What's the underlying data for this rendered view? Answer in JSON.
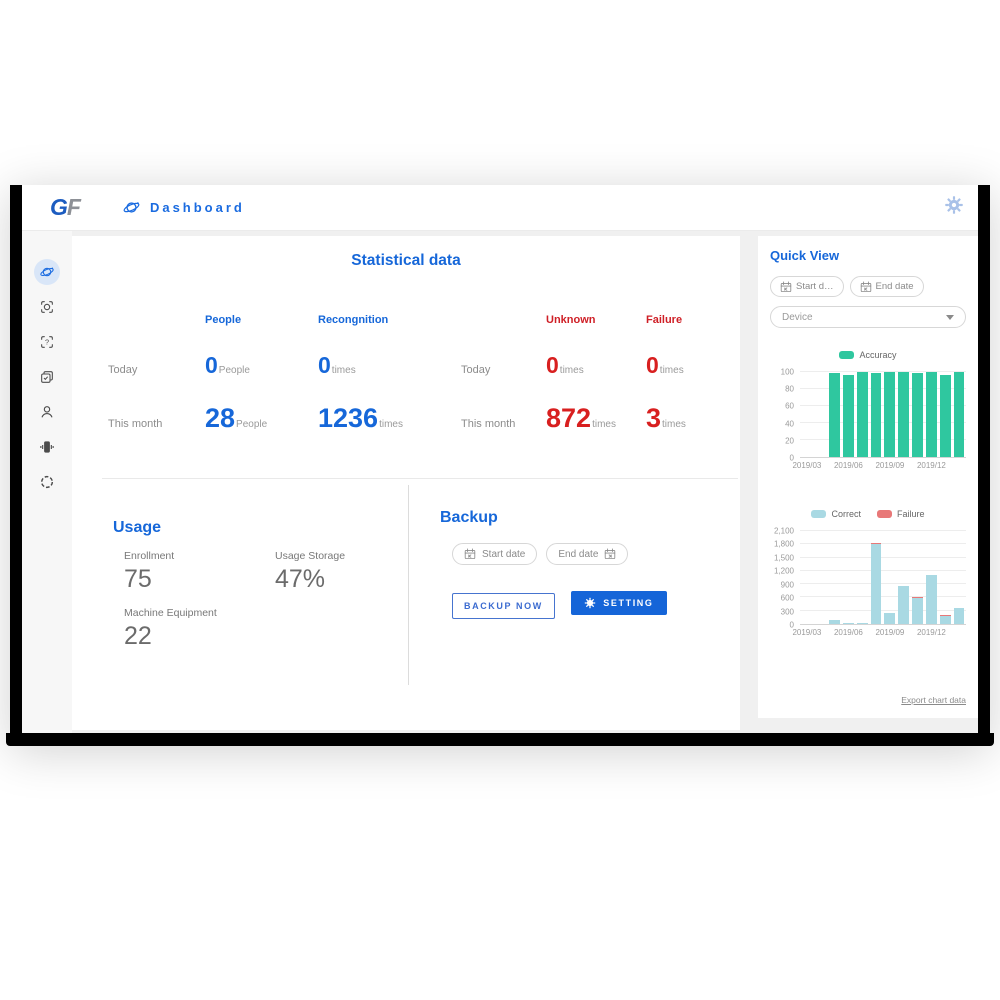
{
  "header": {
    "logo": {
      "g": "G",
      "f": "F"
    },
    "title": "Dashboard"
  },
  "sidebar": {
    "items": [
      {
        "icon": "planet-icon",
        "active": true
      },
      {
        "icon": "face-scan-icon",
        "active": false
      },
      {
        "icon": "unknown-scan-icon",
        "active": false
      },
      {
        "icon": "records-icon",
        "active": false
      },
      {
        "icon": "user-icon",
        "active": false
      },
      {
        "icon": "device-icon",
        "active": false
      },
      {
        "icon": "aperture-icon",
        "active": false
      }
    ]
  },
  "stats": {
    "title": "Statistical data",
    "columns": {
      "people": "People",
      "recognition": "Recongnition",
      "unknown": "Unknown",
      "failure": "Failure"
    },
    "units": {
      "people": "People",
      "times": "times"
    },
    "rows": [
      {
        "label": "Today",
        "people": "0",
        "recognition": "0",
        "label2": "Today",
        "unknown": "0",
        "failure": "0"
      },
      {
        "label": "This month",
        "people": "28",
        "recognition": "1236",
        "label2": "This month",
        "unknown": "872",
        "failure": "3"
      }
    ]
  },
  "usage": {
    "title": "Usage",
    "items": [
      {
        "label": "Enrollment",
        "value": "75"
      },
      {
        "label": "Usage Storage",
        "value": "47%"
      },
      {
        "label": "Machine Equipment",
        "value": "22"
      }
    ]
  },
  "backup": {
    "title": "Backup",
    "start_placeholder": "Start date",
    "end_placeholder": "End date",
    "backup_button": "BACKUP NOW",
    "setting_button": "SETTING"
  },
  "quick_view": {
    "title": "Quick View",
    "start_placeholder": "Start d…",
    "end_placeholder": "End date",
    "device_placeholder": "Device",
    "export_link": "Export chart data"
  },
  "colors": {
    "accent_blue": "#1667d9",
    "red": "#d81f1f",
    "accuracy_teal": "#2fc79f",
    "correct_light_blue": "#a9d9e3",
    "failure_red": "#e87878"
  },
  "chart_data": [
    {
      "type": "bar",
      "title": "Accuracy by month",
      "legend": [
        {
          "label": "Accuracy",
          "color": "#2fc79f"
        }
      ],
      "x": [
        "2019/03",
        "2019/04",
        "2019/05",
        "2019/06",
        "2019/07",
        "2019/08",
        "2019/09",
        "2019/10",
        "2019/11",
        "2019/12",
        "2020/01",
        "2020/02"
      ],
      "x_tick_positions": [
        0,
        3,
        6,
        9
      ],
      "x_tick_labels": [
        "2019/03",
        "2019/06",
        "2019/09",
        "2019/12"
      ],
      "series": [
        {
          "name": "Accuracy",
          "color": "#2fc79f",
          "values": [
            null,
            null,
            99,
            97,
            100,
            99,
            100,
            100,
            99,
            100,
            96,
            100
          ]
        }
      ],
      "ylim": [
        0,
        100
      ],
      "yticks": [
        0,
        20,
        40,
        60,
        80,
        100
      ],
      "ytick_labels": [
        "0",
        "20",
        "40",
        "60",
        "80",
        "100"
      ],
      "grid": true,
      "legend_position": "top"
    },
    {
      "type": "stacked-bar",
      "title": "Correct vs Failure by month",
      "legend": [
        {
          "label": "Correct",
          "color": "#a9d9e3"
        },
        {
          "label": "Failure",
          "color": "#e87878"
        }
      ],
      "x": [
        "2019/03",
        "2019/04",
        "2019/05",
        "2019/06",
        "2019/07",
        "2019/08",
        "2019/09",
        "2019/10",
        "2019/11",
        "2019/12",
        "2020/01",
        "2020/02"
      ],
      "x_tick_positions": [
        0,
        3,
        6,
        9
      ],
      "x_tick_labels": [
        "2019/03",
        "2019/06",
        "2019/09",
        "2019/12"
      ],
      "series": [
        {
          "name": "Correct",
          "color": "#a9d9e3",
          "values": [
            0,
            0,
            90,
            30,
            30,
            1800,
            260,
            860,
            600,
            1100,
            200,
            360
          ]
        },
        {
          "name": "Failure",
          "color": "#e87878",
          "values": [
            0,
            0,
            0,
            0,
            0,
            40,
            0,
            0,
            15,
            0,
            10,
            0
          ]
        }
      ],
      "ylim": [
        0,
        2100
      ],
      "yticks": [
        0,
        300,
        600,
        900,
        1200,
        1500,
        1800,
        2100
      ],
      "ytick_labels": [
        "0",
        "300",
        "600",
        "900",
        "1,200",
        "1,500",
        "1,800",
        "2,100"
      ],
      "grid": true,
      "legend_position": "top"
    }
  ]
}
